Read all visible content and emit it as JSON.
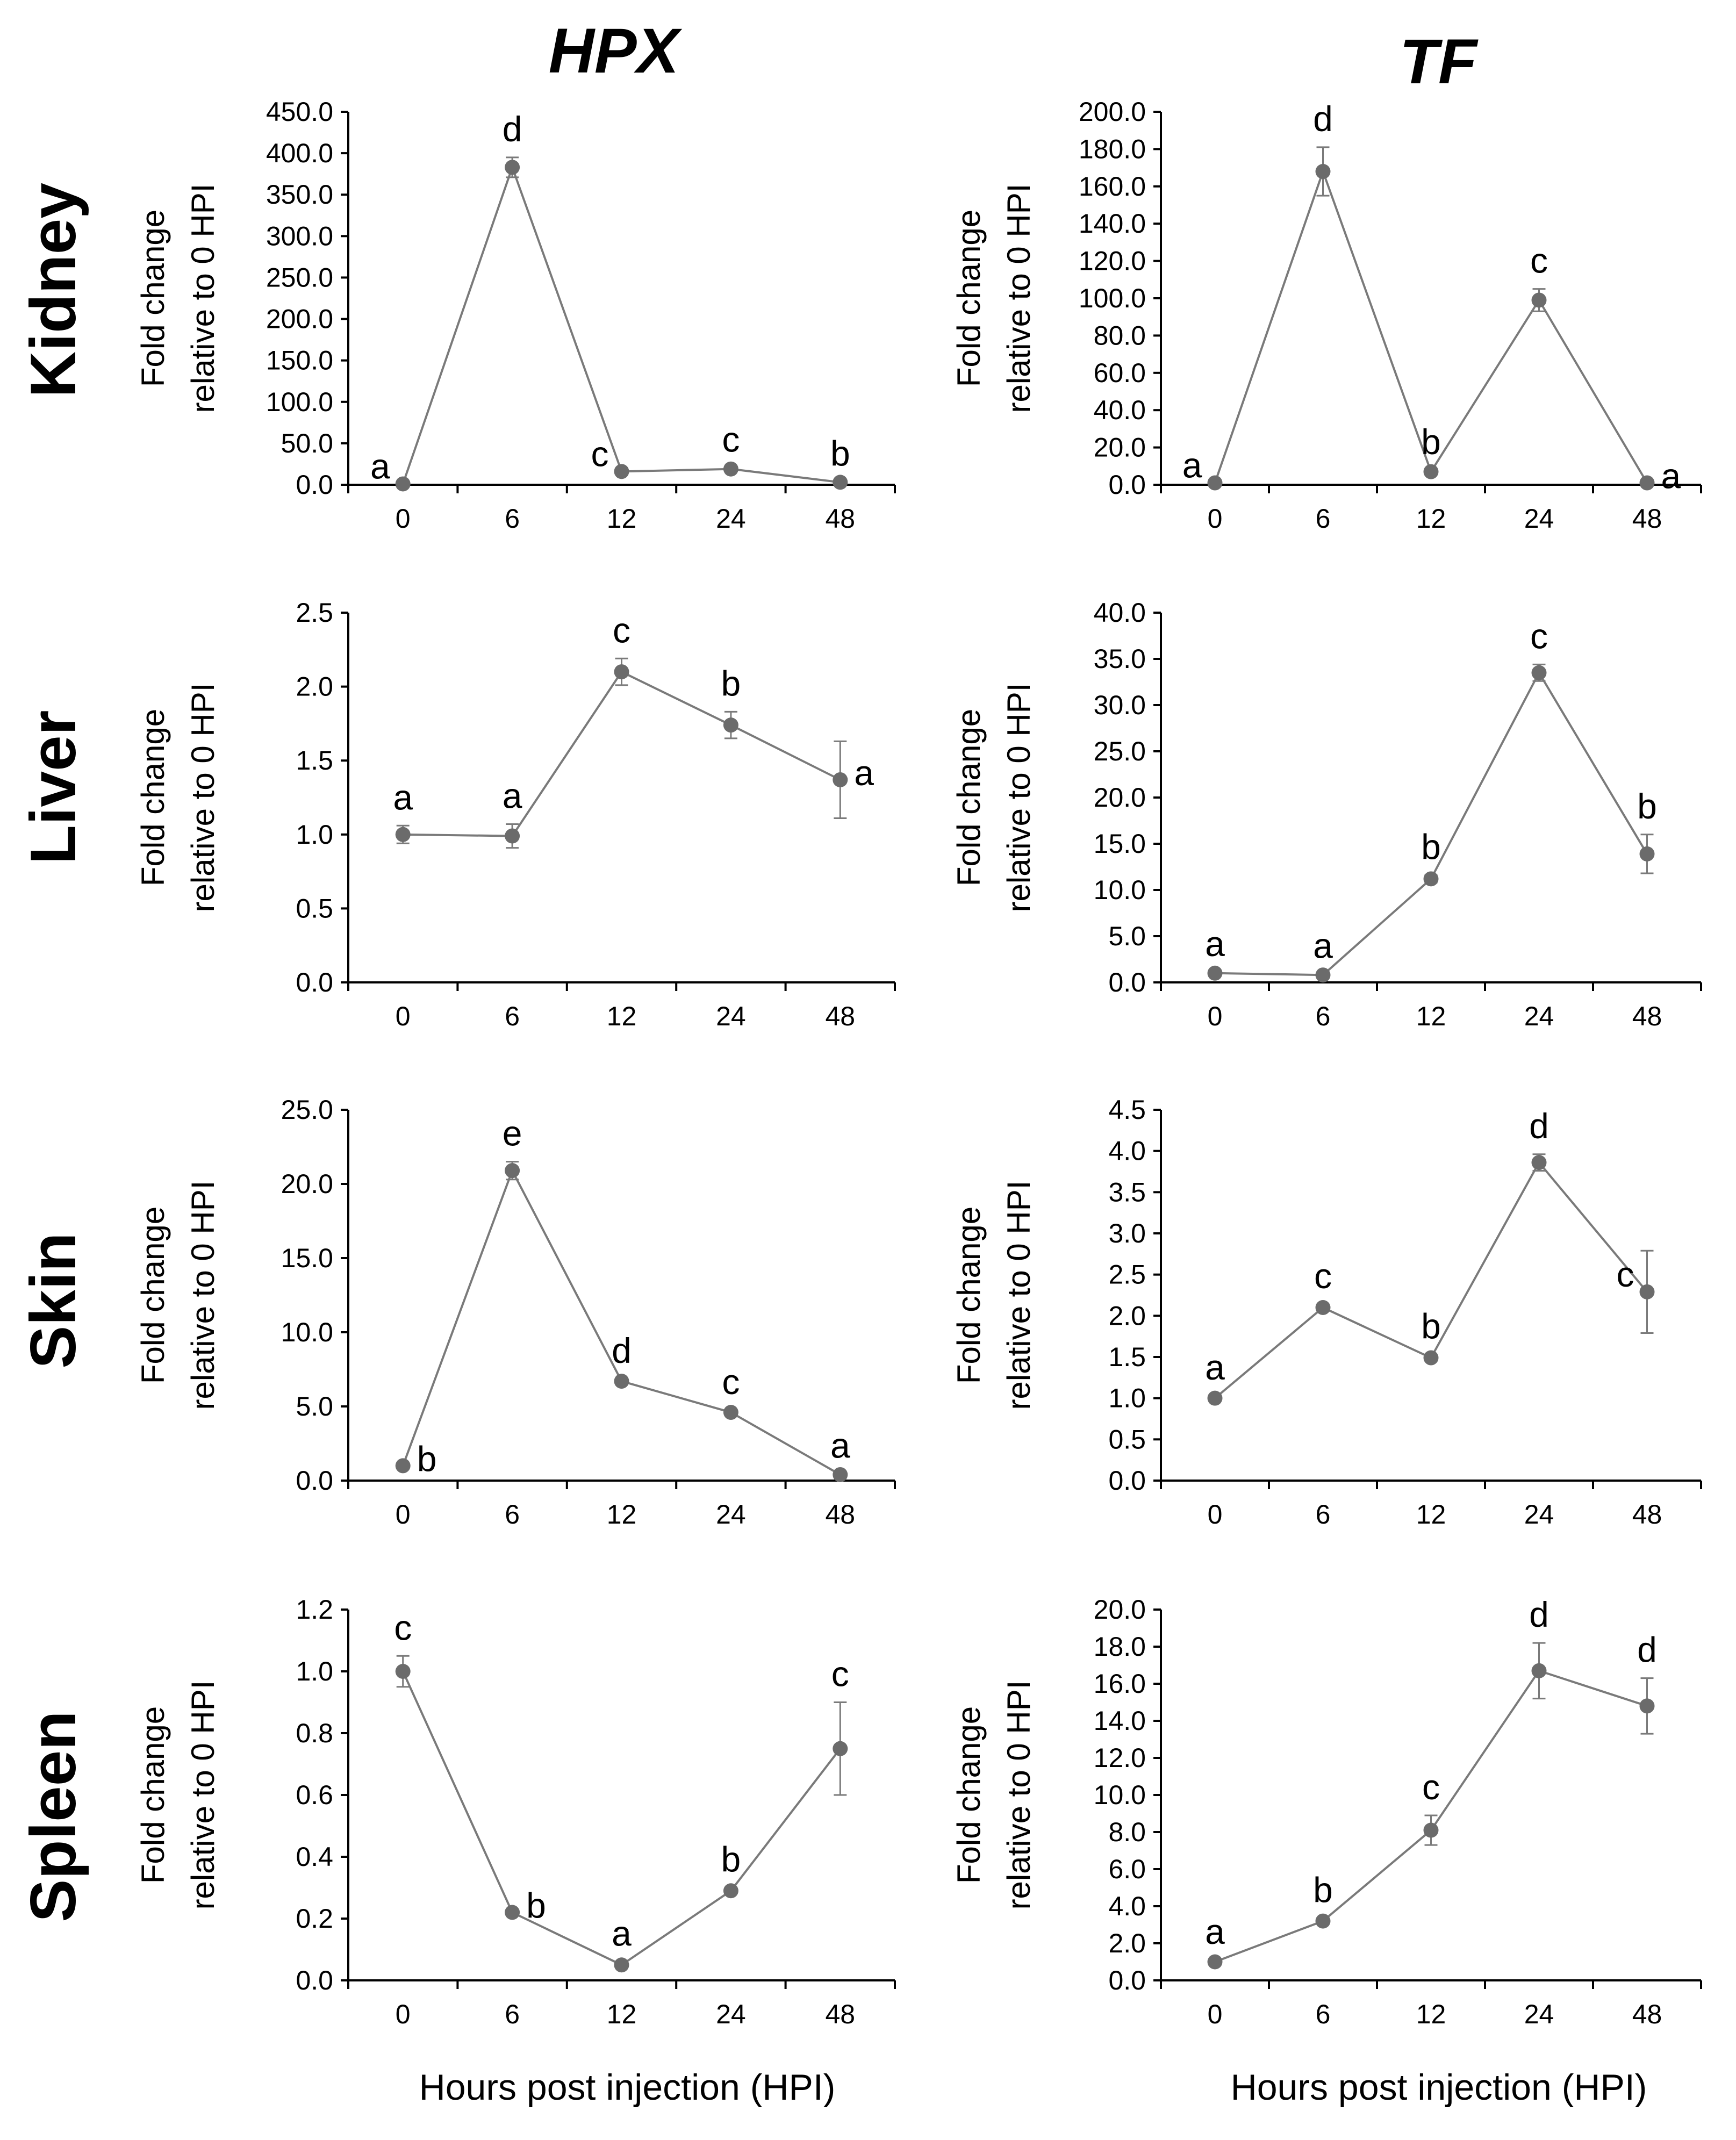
{
  "figure": {
    "column_titles": [
      "HPX",
      "TF"
    ],
    "row_titles": [
      "Kidney",
      "Liver",
      "Skin",
      "Spleen"
    ],
    "x_axis_label": "Hours post injection (HPI)",
    "y_axis_label": [
      "Fold change",
      "relative to 0 HPI"
    ],
    "marker_color": "#6b6b6b",
    "line_color": "#7a7a7a"
  },
  "chart_data": [
    {
      "type": "line",
      "gene": "HPX",
      "tissue": "Kidney",
      "categories": [
        "0",
        "6",
        "12",
        "24",
        "48"
      ],
      "values": [
        1.0,
        383.0,
        16.0,
        19.0,
        3.0
      ],
      "errors": [
        0.5,
        12.0,
        1.0,
        1.5,
        0.5
      ],
      "letters": [
        "a",
        "d",
        "c",
        "c",
        "b"
      ],
      "letter_side": [
        "left",
        "above",
        "left",
        "above",
        "above"
      ],
      "ylim": [
        0,
        450
      ],
      "yticks": [
        "0.0",
        "50.0",
        "100.0",
        "150.0",
        "200.0",
        "250.0",
        "300.0",
        "350.0",
        "400.0",
        "450.0"
      ],
      "xlabel": "",
      "ylabel": "Fold change relative to 0 HPI"
    },
    {
      "type": "line",
      "gene": "TF",
      "tissue": "Kidney",
      "categories": [
        "0",
        "6",
        "12",
        "24",
        "48"
      ],
      "values": [
        1.0,
        168.0,
        7.0,
        99.0,
        1.0
      ],
      "errors": [
        0.3,
        13.0,
        0.8,
        6.0,
        0.3
      ],
      "letters": [
        "a",
        "d",
        "b",
        "c",
        "a"
      ],
      "letter_side": [
        "left",
        "above",
        "above",
        "above",
        "right"
      ],
      "ylim": [
        0,
        200
      ],
      "yticks": [
        "0.0",
        "20.0",
        "40.0",
        "60.0",
        "80.0",
        "100.0",
        "120.0",
        "140.0",
        "160.0",
        "180.0",
        "200.0"
      ],
      "xlabel": "",
      "ylabel": "Fold change relative to 0 HPI"
    },
    {
      "type": "line",
      "gene": "HPX",
      "tissue": "Liver",
      "categories": [
        "0",
        "6",
        "12",
        "24",
        "48"
      ],
      "values": [
        1.0,
        0.99,
        2.1,
        1.74,
        1.37
      ],
      "errors": [
        0.06,
        0.08,
        0.09,
        0.09,
        0.26
      ],
      "letters": [
        "a",
        "a",
        "c",
        "b",
        "a"
      ],
      "letter_side": [
        "above",
        "above",
        "above",
        "above",
        "right"
      ],
      "ylim": [
        0,
        2.5
      ],
      "yticks": [
        "0.0",
        "0.5",
        "1.0",
        "1.5",
        "2.0",
        "2.5"
      ],
      "xlabel": "",
      "ylabel": "Fold change relative to 0 HPI"
    },
    {
      "type": "line",
      "gene": "TF",
      "tissue": "Liver",
      "categories": [
        "0",
        "6",
        "12",
        "24",
        "48"
      ],
      "values": [
        1.0,
        0.8,
        11.2,
        33.5,
        13.9
      ],
      "errors": [
        0.1,
        0.1,
        0.4,
        0.9,
        2.1
      ],
      "letters": [
        "a",
        "a",
        "b",
        "c",
        "b"
      ],
      "letter_side": [
        "above",
        "above",
        "above",
        "above",
        "above"
      ],
      "ylim": [
        0,
        40
      ],
      "yticks": [
        "0.0",
        "5.0",
        "10.0",
        "15.0",
        "20.0",
        "25.0",
        "30.0",
        "35.0",
        "40.0"
      ],
      "xlabel": "",
      "ylabel": "Fold change relative to 0 HPI"
    },
    {
      "type": "line",
      "gene": "HPX",
      "tissue": "Skin",
      "categories": [
        "0",
        "6",
        "12",
        "24",
        "48"
      ],
      "values": [
        1.0,
        20.9,
        6.7,
        4.6,
        0.4
      ],
      "errors": [
        0.05,
        0.6,
        0.15,
        0.15,
        0.05
      ],
      "letters": [
        "b",
        "e",
        "d",
        "c",
        "a"
      ],
      "letter_side": [
        "right",
        "above",
        "above",
        "above",
        "above"
      ],
      "ylim": [
        0,
        25
      ],
      "yticks": [
        "0.0",
        "5.0",
        "10.0",
        "15.0",
        "20.0",
        "25.0"
      ],
      "xlabel": "",
      "ylabel": "Fold change relative to 0 HPI"
    },
    {
      "type": "line",
      "gene": "TF",
      "tissue": "Skin",
      "categories": [
        "0",
        "6",
        "12",
        "24",
        "48"
      ],
      "values": [
        1.0,
        2.1,
        1.49,
        3.86,
        2.29
      ],
      "errors": [
        0.03,
        0.04,
        0.04,
        0.1,
        0.5
      ],
      "letters": [
        "a",
        "c",
        "b",
        "d",
        "c"
      ],
      "letter_side": [
        "above",
        "above",
        "above",
        "above",
        "left"
      ],
      "ylim": [
        0,
        4.5
      ],
      "yticks": [
        "0.0",
        "0.5",
        "1.0",
        "1.5",
        "2.0",
        "2.5",
        "3.0",
        "3.5",
        "4.0",
        "4.5"
      ],
      "xlabel": "",
      "ylabel": "Fold change relative to 0 HPI"
    },
    {
      "type": "line",
      "gene": "HPX",
      "tissue": "Spleen",
      "categories": [
        "0",
        "6",
        "12",
        "24",
        "48"
      ],
      "values": [
        1.0,
        0.22,
        0.05,
        0.29,
        0.75
      ],
      "errors": [
        0.05,
        0.01,
        0.01,
        0.01,
        0.15
      ],
      "letters": [
        "c",
        "b",
        "a",
        "b",
        "c"
      ],
      "letter_side": [
        "above",
        "right",
        "above",
        "above",
        "above"
      ],
      "ylim": [
        0,
        1.2
      ],
      "yticks": [
        "0.0",
        "0.2",
        "0.4",
        "0.6",
        "0.8",
        "1.0",
        "1.2"
      ],
      "xlabel": "Hours post injection (HPI)",
      "ylabel": "Fold change relative to 0 HPI"
    },
    {
      "type": "line",
      "gene": "TF",
      "tissue": "Spleen",
      "categories": [
        "0",
        "6",
        "12",
        "24",
        "48"
      ],
      "values": [
        1.0,
        3.2,
        8.1,
        16.7,
        14.8
      ],
      "errors": [
        0.1,
        0.15,
        0.8,
        1.5,
        1.5
      ],
      "letters": [
        "a",
        "b",
        "c",
        "d",
        "d"
      ],
      "letter_side": [
        "above",
        "above",
        "above",
        "above",
        "above"
      ],
      "ylim": [
        0,
        20
      ],
      "yticks": [
        "0.0",
        "2.0",
        "4.0",
        "6.0",
        "8.0",
        "10.0",
        "12.0",
        "14.0",
        "16.0",
        "18.0",
        "20.0"
      ],
      "xlabel": "Hours post injection (HPI)",
      "ylabel": "Fold change relative to 0 HPI"
    }
  ]
}
